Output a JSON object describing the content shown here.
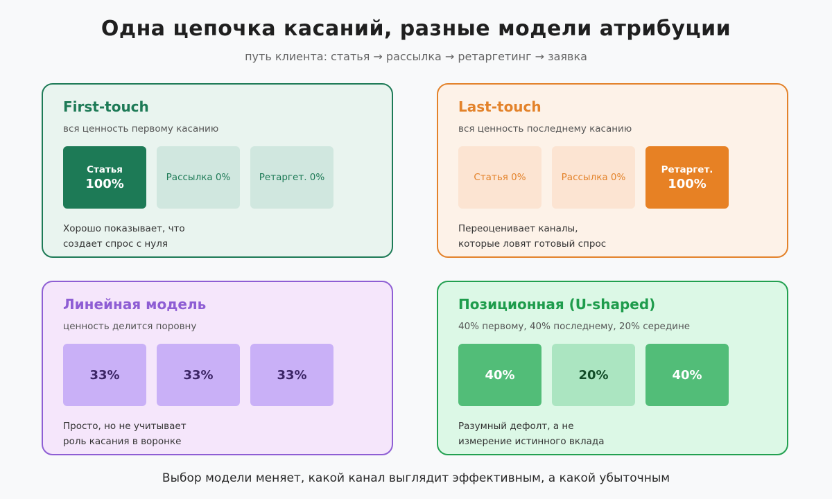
{
  "title": "Одна цепочка касаний, разные модели атрибуции",
  "subtitle": "путь клиента: статья → рассылка → ретаргетинг → заявка",
  "footer": "Выбор модели меняет, какой канал выглядит эффективным, а какой убыточным",
  "cards": [
    {
      "title": "First-touch",
      "subtitle": "вся ценность первому касанию",
      "boxes": [
        {
          "name": "Статья",
          "value": "100%"
        },
        {
          "label": "Рассылка 0%"
        },
        {
          "label": "Ретаргет. 0%"
        }
      ],
      "note": "Хорошо показывает, что\nсоздает спрос с нуля"
    },
    {
      "title": "Last-touch",
      "subtitle": "вся ценность последнему касанию",
      "boxes": [
        {
          "label": "Статья 0%"
        },
        {
          "label": "Рассылка 0%"
        },
        {
          "name": "Ретаргет.",
          "value": "100%"
        }
      ],
      "note": "Переоценивает каналы,\nкоторые ловят готовый спрос"
    },
    {
      "title": "Линейная модель",
      "subtitle": "ценность делится поровну",
      "boxes": [
        {
          "value": "33%"
        },
        {
          "value": "33%"
        },
        {
          "value": "33%"
        }
      ],
      "note": "Просто, но не учитывает\nроль касания в воронке"
    },
    {
      "title": "Позиционная (U-shaped)",
      "subtitle": "40% первому, 40% последнему, 20% середине",
      "boxes": [
        {
          "value": "40%"
        },
        {
          "value": "20%"
        },
        {
          "value": "40%"
        }
      ],
      "note": "Разумный дефолт, а не\nизмерение истинного вклада"
    }
  ],
  "colors": {
    "first_touch": "#1d7a56",
    "last_touch": "#e3822a",
    "linear": "#8e5ed4",
    "u_shaped": "#22a050"
  }
}
